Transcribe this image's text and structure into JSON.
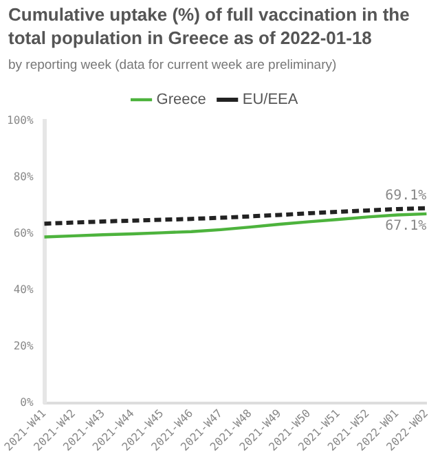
{
  "chart_data": {
    "type": "line",
    "title": "Cumulative uptake (%) of full vaccination in the total population in Greece as of 2022-01-18",
    "subtitle": "by reporting week (data for current week are preliminary)",
    "categories": [
      "2021-W41",
      "2021-W42",
      "2021-W43",
      "2021-W44",
      "2021-W45",
      "2021-W46",
      "2021-W47",
      "2021-W48",
      "2021-W49",
      "2021-W50",
      "2021-W51",
      "2021-W52",
      "2022-W01",
      "2022-W02"
    ],
    "series": [
      {
        "name": "Greece",
        "color": "#4db33d",
        "line_style": "solid",
        "values": [
          58.9,
          59.3,
          59.7,
          60.0,
          60.4,
          60.8,
          61.5,
          62.4,
          63.4,
          64.3,
          65.1,
          66.0,
          66.7,
          67.1
        ],
        "value_labels": [
          null,
          null,
          null,
          null,
          null,
          null,
          null,
          null,
          null,
          null,
          null,
          null,
          null,
          "67.1%"
        ]
      },
      {
        "name": "EU/EEA",
        "color": "#222222",
        "line_style": "dashed",
        "values": [
          63.6,
          64.0,
          64.4,
          64.7,
          65.0,
          65.3,
          65.7,
          66.2,
          66.7,
          67.3,
          67.8,
          68.3,
          68.8,
          69.1
        ],
        "value_labels": [
          null,
          null,
          null,
          null,
          null,
          null,
          null,
          null,
          null,
          null,
          null,
          null,
          null,
          "69.1%"
        ]
      }
    ],
    "ylim": [
      0,
      100
    ],
    "yticks": [
      {
        "value": 0,
        "label": "0%"
      },
      {
        "value": 20,
        "label": "20%"
      },
      {
        "value": 40,
        "label": "40%"
      },
      {
        "value": 60,
        "label": "60%"
      },
      {
        "value": 80,
        "label": "80%"
      },
      {
        "value": 100,
        "label": "100%"
      }
    ],
    "grid": false,
    "legend": "top",
    "marker": "none"
  }
}
